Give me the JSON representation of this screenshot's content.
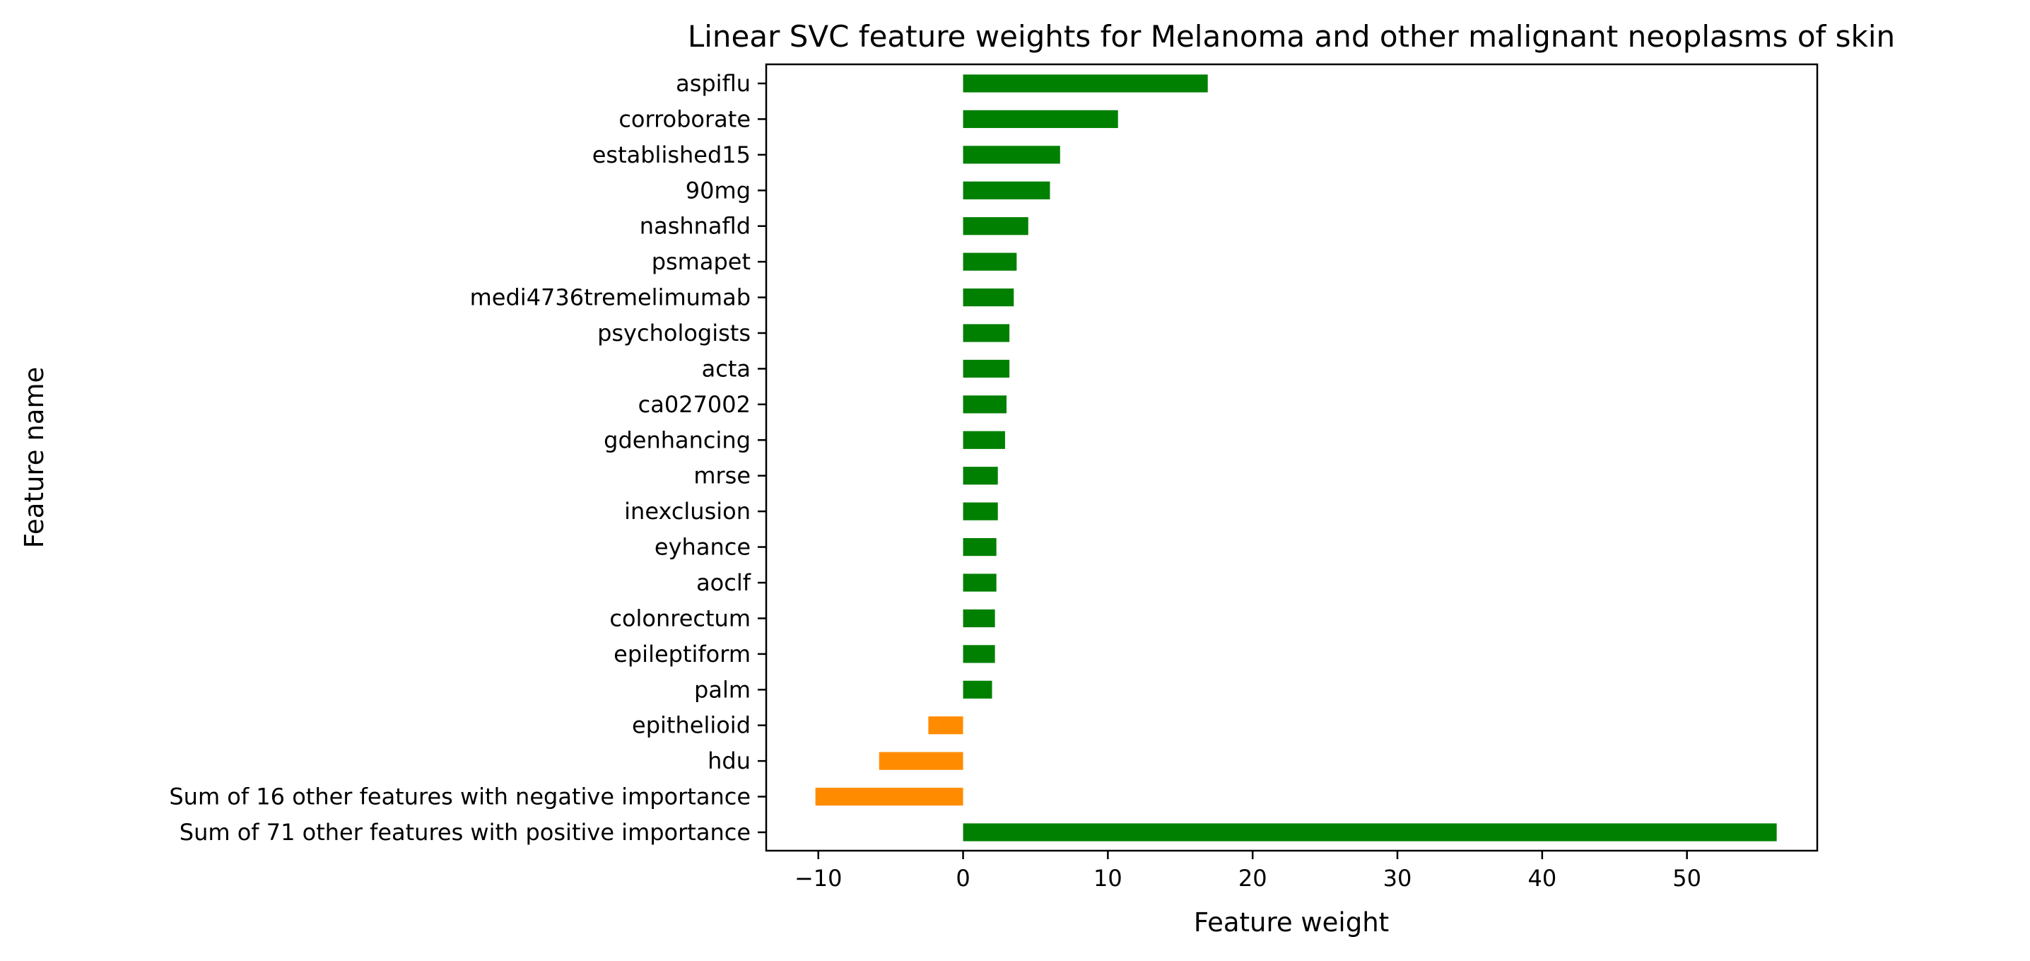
{
  "chart_data": {
    "type": "bar",
    "orientation": "horizontal",
    "title": "Linear SVC feature weights for Melanoma and other malignant neoplasms of skin",
    "xlabel": "Feature weight",
    "ylabel": "Feature name",
    "xlim": [
      -13.6,
      59.0
    ],
    "xticks": [
      -10,
      0,
      10,
      20,
      30,
      40,
      50
    ],
    "xtick_labels": [
      "−10",
      "0",
      "10",
      "20",
      "30",
      "40",
      "50"
    ],
    "grid": false,
    "legend": "none",
    "colors": {
      "positive": "#008000",
      "negative": "#ff8c00"
    },
    "categories": [
      "aspiflu",
      "corroborate",
      "established15",
      "90mg",
      "nashnafld",
      "psmapet",
      "medi4736tremelimumab",
      "psychologists",
      "acta",
      "ca027002",
      "gdenhancing",
      "mrse",
      "inexclusion",
      "eyhance",
      "aoclf",
      "colonrectum",
      "epileptiform",
      "palm",
      "epithelioid",
      "hdu",
      "Sum of 16 other features with negative importance",
      "Sum of 71 other features with positive importance"
    ],
    "values": [
      16.9,
      10.7,
      6.7,
      6.0,
      4.5,
      3.7,
      3.5,
      3.2,
      3.2,
      3.0,
      2.9,
      2.4,
      2.4,
      2.3,
      2.3,
      2.2,
      2.2,
      2.0,
      -2.4,
      -5.8,
      -10.2,
      56.2
    ]
  }
}
